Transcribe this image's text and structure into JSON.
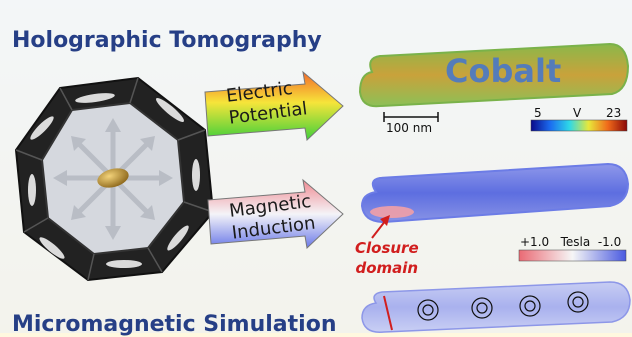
{
  "titles": {
    "top": "Holographic Tomography",
    "bottom": "Micromagnetic Simulation"
  },
  "arrows": {
    "electric": {
      "line1": "Electric",
      "line2": "Potential"
    },
    "magnetic": {
      "line1": "Magnetic",
      "line2": "Induction"
    }
  },
  "sample_label": "Cobalt",
  "scale_bar": "100 nm",
  "colorbar_potential": {
    "min": "5",
    "unit": "V",
    "max": "23"
  },
  "colorbar_induction": {
    "labels": "+1.0   Tesla  -1.0"
  },
  "annotation": {
    "line1": "Closure",
    "line2": "domain"
  },
  "colors": {
    "title": "#263f86",
    "annotation": "#d11e1e",
    "background": "#fff8df"
  }
}
